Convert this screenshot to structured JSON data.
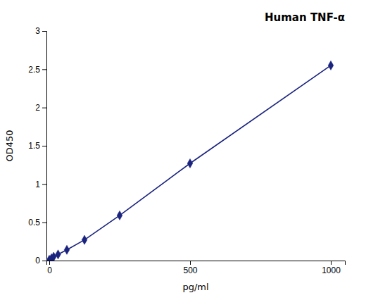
{
  "chart_data": {
    "type": "line",
    "title": "Human TNF-α",
    "x_label": "pg/ml",
    "y_label": "OD450",
    "x": [
      0,
      7.8,
      15.6,
      31.25,
      62.5,
      125,
      250,
      500,
      1000
    ],
    "values": [
      0.01,
      0.03,
      0.05,
      0.08,
      0.14,
      0.27,
      0.59,
      1.27,
      2.55
    ],
    "color": "#1a237e",
    "marker": "diamond",
    "xlim": [
      -10,
      1050
    ],
    "xticks": [
      0,
      500,
      1000
    ],
    "ylim": [
      0,
      3.0
    ],
    "yticks": [
      0,
      0.5,
      1,
      1.5,
      2,
      2.5,
      3
    ]
  }
}
